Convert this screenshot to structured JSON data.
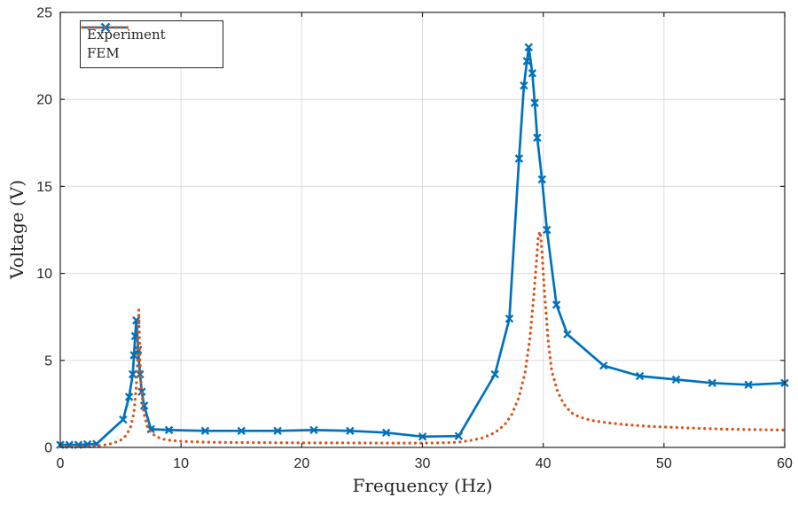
{
  "chart_data": {
    "type": "line",
    "title": "",
    "xlabel": "Frequency (Hz)",
    "ylabel": "Voltage (V)",
    "xlim": [
      0,
      60
    ],
    "ylim": [
      0,
      25
    ],
    "xticks": [
      0,
      10,
      20,
      30,
      40,
      50,
      60
    ],
    "yticks": [
      0,
      5,
      10,
      15,
      20,
      25
    ],
    "grid": true,
    "legend": {
      "position": "top-left",
      "entries": [
        "Experiment",
        "FEM"
      ]
    },
    "series": [
      {
        "name": "Experiment",
        "color": "#0072BD",
        "style": "solid",
        "marker": "x",
        "x": [
          0,
          0.75,
          1.5,
          2.25,
          3,
          5.2,
          5.7,
          6.0,
          6.1,
          6.2,
          6.3,
          6.45,
          6.6,
          6.75,
          6.95,
          7.5,
          9,
          12,
          15,
          18,
          21,
          24,
          27,
          30,
          33,
          36,
          37.2,
          38,
          38.4,
          38.65,
          38.8,
          39.1,
          39.3,
          39.5,
          39.9,
          40.3,
          41.1,
          42,
          45,
          48,
          51,
          54,
          57,
          60
        ],
        "y": [
          0.15,
          0.15,
          0.15,
          0.18,
          0.2,
          1.6,
          2.9,
          4.2,
          5.3,
          6.4,
          7.3,
          5.6,
          4.2,
          3.2,
          2.4,
          1.05,
          1.0,
          0.95,
          0.95,
          0.95,
          1.0,
          0.95,
          0.85,
          0.62,
          0.65,
          4.2,
          7.4,
          16.6,
          20.8,
          22.2,
          23.0,
          21.5,
          19.8,
          17.8,
          15.4,
          12.5,
          8.2,
          6.5,
          4.7,
          4.1,
          3.9,
          3.7,
          3.6,
          3.7
        ]
      },
      {
        "name": "FEM",
        "color": "#D95319",
        "style": "dotted",
        "marker": "none",
        "x": [
          0,
          1,
          2,
          3,
          3.5,
          4,
          4.5,
          5,
          5.4,
          5.8,
          6.1,
          6.3,
          6.4,
          6.5,
          6.6,
          6.7,
          6.9,
          7.2,
          7.5,
          8,
          8.5,
          9,
          10,
          12,
          15,
          18,
          21,
          24,
          27,
          30,
          32,
          33,
          34,
          35,
          36,
          36.8,
          37.4,
          38,
          38.5,
          38.9,
          39.2,
          39.45,
          39.6,
          39.75,
          39.9,
          40.1,
          40.4,
          40.7,
          41.2,
          41.7,
          42.3,
          43,
          44,
          45.5,
          47,
          49,
          52,
          55,
          60
        ],
        "y": [
          0.05,
          0.05,
          0.06,
          0.08,
          0.12,
          0.18,
          0.28,
          0.42,
          0.65,
          1.1,
          2.0,
          3.6,
          5.0,
          7.9,
          5.0,
          3.6,
          2.0,
          1.2,
          0.85,
          0.6,
          0.48,
          0.42,
          0.35,
          0.3,
          0.28,
          0.27,
          0.26,
          0.26,
          0.25,
          0.25,
          0.27,
          0.3,
          0.4,
          0.55,
          0.85,
          1.3,
          1.9,
          2.9,
          4.3,
          6.3,
          8.6,
          10.8,
          12.2,
          12.4,
          11.2,
          9.0,
          6.2,
          4.4,
          3.2,
          2.5,
          2.0,
          1.75,
          1.55,
          1.4,
          1.3,
          1.2,
          1.12,
          1.05,
          1.0
        ]
      }
    ]
  },
  "colors": {
    "axis": "#262626",
    "grid": "#dcdcdc",
    "tick_label": "#262626",
    "background": "#ffffff",
    "experiment": "#0072BD",
    "fem": "#D95319"
  }
}
